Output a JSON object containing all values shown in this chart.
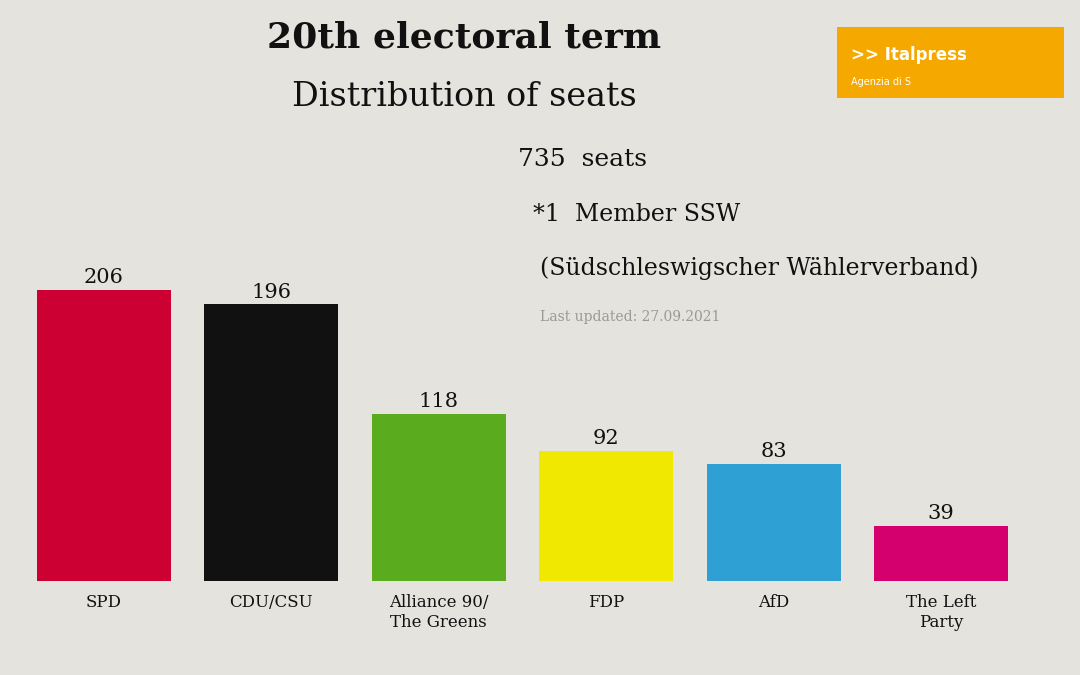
{
  "title_line1": "20th electoral term",
  "title_line2": "Distribution of seats",
  "background_color": "#e5e3de",
  "parties": [
    "SPD",
    "CDU/CSU",
    "Alliance 90/\nThe Greens",
    "FDP",
    "AfD",
    "The Left\nParty"
  ],
  "values": [
    206,
    196,
    118,
    92,
    83,
    39
  ],
  "colors": [
    "#cc0033",
    "#111111",
    "#5aab1e",
    "#f0e800",
    "#2fa0d4",
    "#d4006e"
  ],
  "annotation_735": "735",
  "annotation_seats": "  seats",
  "annotation_line2a": "*1",
  "annotation_line2b": "  Member SSW",
  "annotation_line3": "(Südschleswigscher Wählerverband)",
  "annotation_line4": "Last updated: 27.09.2021",
  "italpresse_bg": "#f5a800",
  "ylim_max": 230,
  "value_fontsize": 15,
  "label_fontsize": 12,
  "title1_fontsize": 26,
  "title2_fontsize": 24,
  "annot_fontsize": 17,
  "annot_small_fontsize": 10
}
